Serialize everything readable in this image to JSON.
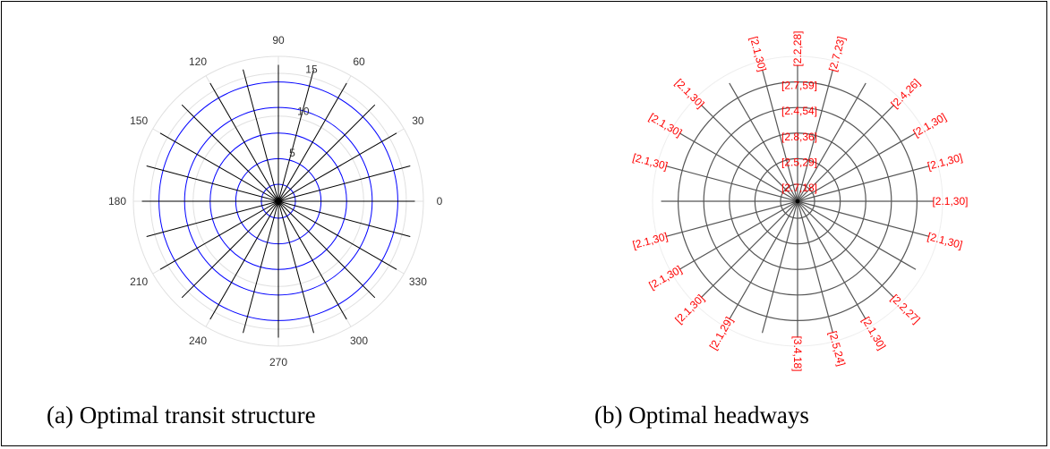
{
  "chart_data": [
    {
      "type": "polar",
      "panel": "a",
      "caption": "(a) Optimal transit structure",
      "angle_ticks": [
        "0",
        "30",
        "60",
        "90",
        "120",
        "150",
        "180",
        "210",
        "240",
        "270",
        "300",
        "330"
      ],
      "angle_tick_values": [
        0,
        30,
        60,
        90,
        120,
        150,
        180,
        210,
        240,
        270,
        300,
        330
      ],
      "radius_ticks": [
        "5",
        "10",
        "15"
      ],
      "radius_tick_values": [
        5,
        10,
        15
      ],
      "rlim": [
        0,
        17
      ],
      "radial_routes": {
        "count": 24,
        "spacing_deg": 15,
        "from_radius": 0,
        "to_radius": 16,
        "color": "#000000"
      },
      "ring_routes": {
        "radii": [
          2,
          5,
          8,
          11,
          14
        ],
        "color": "#0000ff"
      },
      "grid": true,
      "grid_color": "#e0e0e0"
    },
    {
      "type": "polar",
      "panel": "b",
      "caption": "(b) Optimal headways",
      "radial_routes": {
        "count": 24,
        "spacing_deg": 15,
        "from_radius": 0,
        "to_radius": 16,
        "color": "#555555"
      },
      "ring_routes": {
        "radii": [
          2,
          5,
          8,
          11,
          14
        ],
        "color": "#555555"
      },
      "outer_circle": {
        "radius": 17,
        "color": "#eeeeee"
      },
      "label_color": "#ff0000",
      "radial_headway_labels": [
        {
          "angle": 0,
          "text": "[2.1,30]"
        },
        {
          "angle": 15,
          "text": "[2.1,30]"
        },
        {
          "angle": 30,
          "text": "[2.1,30]"
        },
        {
          "angle": 45,
          "text": "[2.4,26]"
        },
        {
          "angle": 75,
          "text": "[2.7,23]"
        },
        {
          "angle": 90,
          "text": "[2.2,28]"
        },
        {
          "angle": 105,
          "text": "[2.1,30]"
        },
        {
          "angle": 135,
          "text": "[2.1,30]"
        },
        {
          "angle": 150,
          "text": "[2.1,30]"
        },
        {
          "angle": 165,
          "text": "[2.1,30]"
        },
        {
          "angle": 195,
          "text": "[2.1,30]"
        },
        {
          "angle": 210,
          "text": "[2.1,30]"
        },
        {
          "angle": 225,
          "text": "[2.1,30]"
        },
        {
          "angle": 240,
          "text": "[2.1,29]"
        },
        {
          "angle": 270,
          "text": "[3.4,18]"
        },
        {
          "angle": 285,
          "text": "[2.5,24]"
        },
        {
          "angle": 300,
          "text": "[2.1,30]"
        },
        {
          "angle": 315,
          "text": "[2.2,27]"
        },
        {
          "angle": 345,
          "text": "[2.1,30]"
        }
      ],
      "ring_headway_labels": [
        {
          "radius": 2,
          "text": "[2.7,18]"
        },
        {
          "radius": 5,
          "text": "[2.5,29]"
        },
        {
          "radius": 8,
          "text": "[2.8,36]"
        },
        {
          "radius": 11,
          "text": "[2.4,54]"
        },
        {
          "radius": 14,
          "text": "[2.7,59]"
        }
      ]
    }
  ]
}
